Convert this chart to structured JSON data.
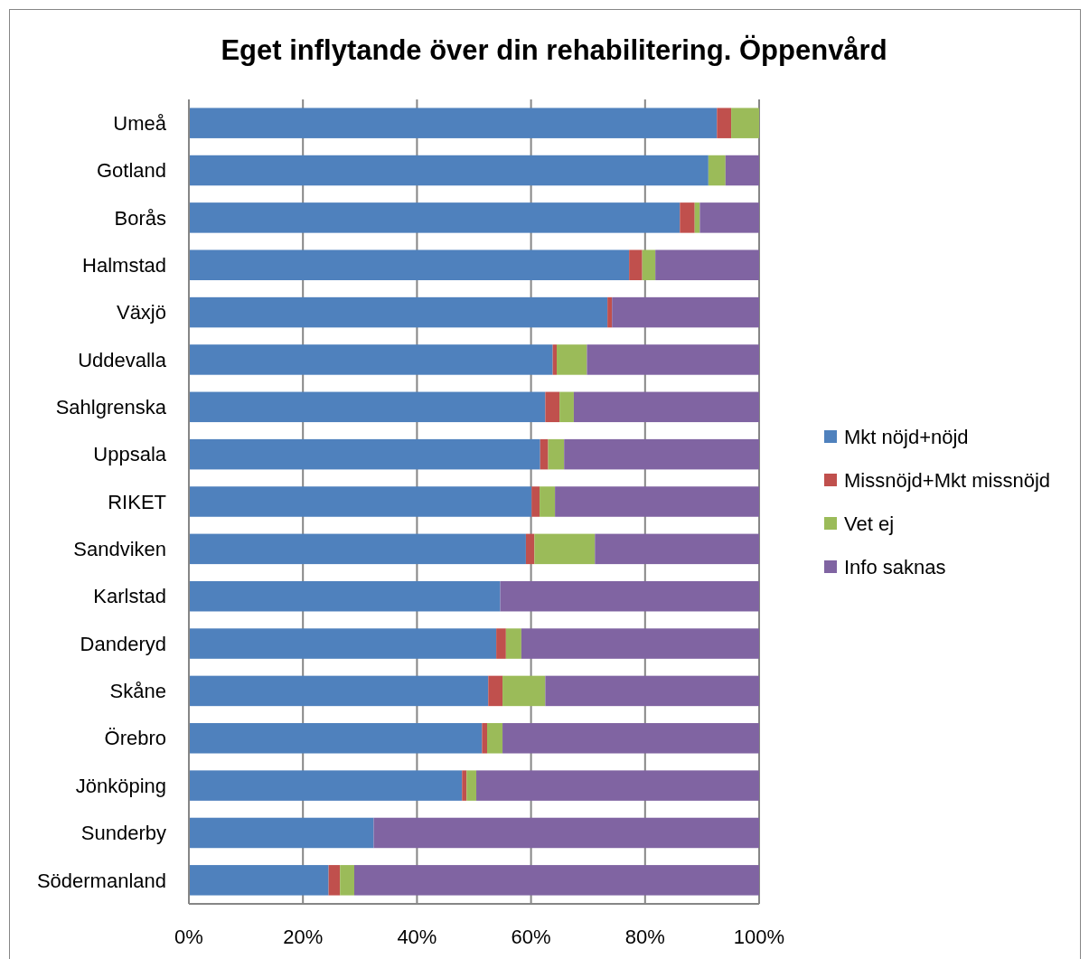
{
  "chart_data": {
    "type": "bar",
    "orientation": "horizontal",
    "stacked": true,
    "title": "Eget inflytande över din rehabilitering. Öppenvård",
    "categories": [
      "Umeå",
      "Gotland",
      "Borås",
      "Halmstad",
      "Växjö",
      "Uddevalla",
      "Sahlgrenska",
      "Uppsala",
      "RIKET",
      "Sandviken",
      "Karlstad",
      "Danderyd",
      "Skåne",
      "Örebro",
      "Jönköping",
      "Sunderby",
      "Södermanland"
    ],
    "series": [
      {
        "name": "Mkt nöjd+nöjd",
        "color": "#4f81bd",
        "values": [
          92.6,
          91.1,
          86.1,
          77.2,
          73.4,
          63.8,
          62.5,
          61.6,
          60.1,
          59.1,
          54.6,
          53.9,
          52.5,
          51.4,
          47.9,
          32.4,
          24.5
        ]
      },
      {
        "name": "Missnöjd+Mkt missnöjd",
        "color": "#c0504d",
        "values": [
          2.5,
          0,
          2.6,
          2.3,
          0.8,
          0.7,
          2.5,
          1.4,
          1.4,
          1.5,
          0,
          1.7,
          2.5,
          0.9,
          0.8,
          0,
          2.0
        ]
      },
      {
        "name": "Vet ej",
        "color": "#9bbb59",
        "values": [
          4.9,
          3.0,
          0.9,
          2.3,
          0,
          5.3,
          2.5,
          2.8,
          2.7,
          10.6,
          0,
          2.7,
          7.5,
          2.7,
          1.7,
          0,
          2.5
        ]
      },
      {
        "name": "Info saknas",
        "color": "#8064a2",
        "values": [
          0,
          5.9,
          10.4,
          18.2,
          25.8,
          30.2,
          32.5,
          34.2,
          35.8,
          28.8,
          45.4,
          41.7,
          37.5,
          45.0,
          49.6,
          67.6,
          71.0
        ]
      }
    ],
    "xlim": [
      0,
      100
    ],
    "xticks": [
      {
        "value": 0,
        "label": "0%"
      },
      {
        "value": 20,
        "label": "20%"
      },
      {
        "value": 40,
        "label": "40%"
      },
      {
        "value": 60,
        "label": "60%"
      },
      {
        "value": 80,
        "label": "80%"
      },
      {
        "value": 100,
        "label": "100%"
      }
    ],
    "grid": "x",
    "legend": "right"
  }
}
